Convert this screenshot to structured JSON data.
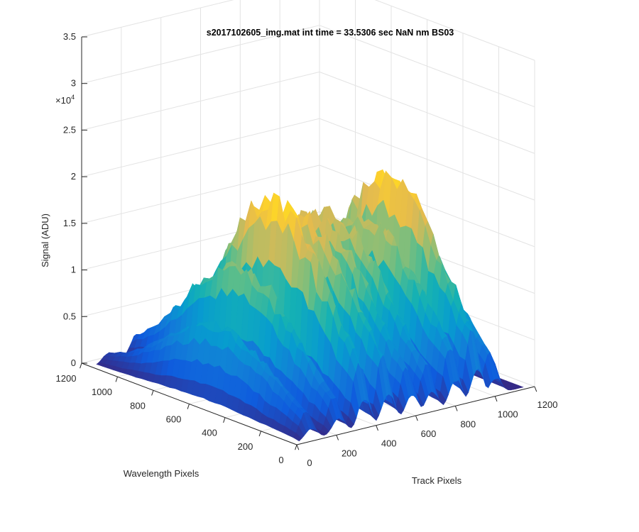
{
  "chart_data": {
    "type": "surface",
    "title": "s2017102605_img.mat int time = 33.5306 sec  NaN nm BS03",
    "xlabel": "Track Pixels",
    "ylabel": "Wavelength Pixels",
    "zlabel": "Signal (ADU)",
    "z_exponent_label": "×10",
    "z_exponent_power": "4",
    "xlim": [
      0,
      1200
    ],
    "ylim": [
      0,
      1200
    ],
    "zlim": [
      0,
      35000
    ],
    "x_ticks": [
      "0",
      "200",
      "400",
      "600",
      "800",
      "1000",
      "1200"
    ],
    "y_ticks": [
      "0",
      "200",
      "400",
      "600",
      "800",
      "1000",
      "1200"
    ],
    "z_ticks": [
      "0",
      "0.5",
      "1",
      "1.5",
      "2",
      "2.5",
      "3",
      "3.5"
    ],
    "grid": true,
    "colormap": "parula",
    "track_bands": [
      {
        "center": 90,
        "peak": 8500
      },
      {
        "center": 230,
        "peak": 14500
      },
      {
        "center": 360,
        "peak": 21000
      },
      {
        "center": 480,
        "peak": 18500
      },
      {
        "center": 600,
        "peak": 18000
      },
      {
        "center": 700,
        "peak": 17500
      },
      {
        "center": 820,
        "peak": 17000
      },
      {
        "center": 930,
        "peak": 21000
      },
      {
        "center": 1020,
        "peak": 16000
      }
    ]
  }
}
